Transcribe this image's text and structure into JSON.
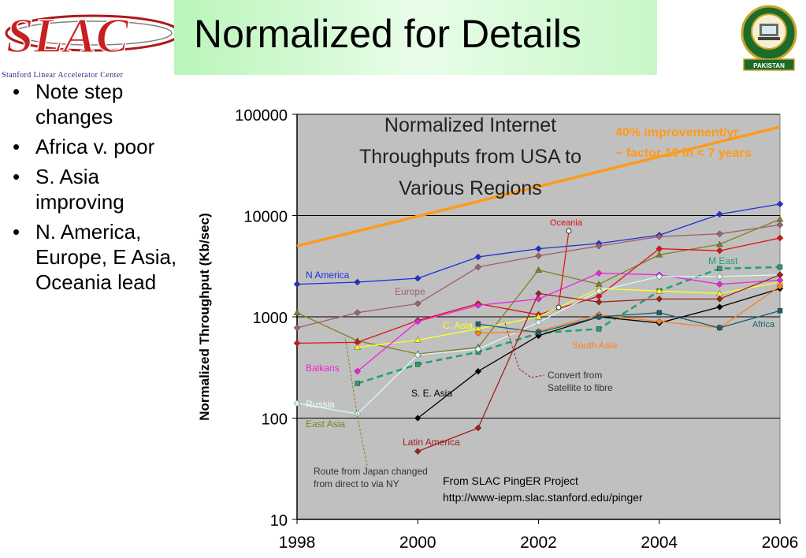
{
  "slide": {
    "title": "Normalized for Details",
    "logo_left": {
      "wordmark": "SLAC",
      "caption": "Stanford Linear Accelerator Center"
    },
    "logo_right": {
      "text": "PAKISTAN"
    },
    "bullets": [
      "Note step changes",
      "Africa v. poor",
      "S. Asia improving",
      "N. America, Europe, E Asia, Oceania lead"
    ]
  },
  "chart_data": {
    "type": "line",
    "title": "Normalized Internet Throughputs from USA to Various Regions",
    "ylabel": "Normalized Throughput (Kb/sec)",
    "xlabel": "",
    "y_scale": "log",
    "ylim": [
      10,
      100000
    ],
    "xlim": [
      1998,
      2006
    ],
    "yticks": [
      "10",
      "100",
      "1000",
      "10000",
      "100000"
    ],
    "xticks": [
      "1998",
      "2000",
      "2002",
      "2004",
      "2006"
    ],
    "plot_background": "#c0c0c0",
    "grid": "horizontal at decades",
    "trend": {
      "label_lines": [
        "40% improvement/yr",
        "~ factor 10 in < 7 years"
      ],
      "points": [
        [
          1998,
          5000
        ],
        [
          2006,
          75000
        ]
      ],
      "color": "#ff9a1a"
    },
    "series": [
      {
        "name": "N America",
        "color": "#1f2fd8",
        "marker": "diamond",
        "dash": false,
        "x": [
          1998,
          1999,
          2000,
          2001,
          2002,
          2003,
          2004,
          2005,
          2006
        ],
        "y": [
          2100,
          2200,
          2400,
          3900,
          4700,
          5300,
          6400,
          10300,
          13000
        ]
      },
      {
        "name": "Europe",
        "color": "#a06070",
        "marker": "diamond",
        "dash": false,
        "x": [
          1998,
          1999,
          2000,
          2001,
          2002,
          2003,
          2004,
          2005,
          2006
        ],
        "y": [
          780,
          1100,
          1350,
          3100,
          4000,
          5000,
          6200,
          6600,
          8100
        ]
      },
      {
        "name": "East Asia",
        "color": "#808020",
        "marker": "triangle",
        "dash": false,
        "x": [
          1998,
          1999,
          2000,
          2001,
          2002,
          2003,
          2004,
          2005,
          2006
        ],
        "y": [
          1100,
          580,
          430,
          500,
          2900,
          2100,
          4100,
          5200,
          9200
        ]
      },
      {
        "name": "M East",
        "color": "#20a070",
        "marker": "square",
        "dash": true,
        "x": [
          1999,
          2000,
          2001,
          2002,
          2003,
          2004,
          2005,
          2006
        ],
        "y": [
          220,
          340,
          450,
          690,
          760,
          1800,
          3000,
          3100
        ]
      },
      {
        "name": "Oceania",
        "color": "#e01010",
        "marker": "diamond",
        "dash": false,
        "x": [
          1998,
          1999,
          2000,
          2001,
          2002,
          2003,
          2004,
          2005,
          2006
        ],
        "y": [
          550,
          560,
          920,
          1350,
          1050,
          1600,
          4700,
          4500,
          6000
        ]
      },
      {
        "name": "C. Asia",
        "color": "#ffff20",
        "marker": "triangle",
        "dash": false,
        "x": [
          1999,
          2000,
          2001,
          2002,
          2003,
          2004,
          2005,
          2006
        ],
        "y": [
          500,
          590,
          760,
          1000,
          1900,
          1800,
          1700,
          2200
        ]
      },
      {
        "name": "Balkans",
        "color": "#f020e0",
        "marker": "diamond",
        "dash": false,
        "x": [
          1999,
          2000,
          2001,
          2002,
          2003,
          2004,
          2005,
          2006
        ],
        "y": [
          290,
          900,
          1300,
          1500,
          2700,
          2600,
          2100,
          2300
        ]
      },
      {
        "name": "Russia",
        "color": "#d8f8f8",
        "marker": "diamond",
        "dash": false,
        "x": [
          1998,
          1999,
          2000,
          2001,
          2002,
          2003,
          2004,
          2005,
          2006
        ],
        "y": [
          140,
          110,
          420,
          480,
          880,
          1800,
          2500,
          2500,
          2600
        ]
      },
      {
        "name": "S. E. Asia",
        "color": "#000000",
        "marker": "diamond",
        "dash": false,
        "x": [
          2000,
          2001,
          2002,
          2003,
          2004,
          2005,
          2006
        ],
        "y": [
          100,
          290,
          650,
          1000,
          870,
          1250,
          1900
        ]
      },
      {
        "name": "South Asia",
        "color": "#ff7f20",
        "marker": "diamond",
        "dash": false,
        "x": [
          2001,
          2002,
          2003,
          2004,
          2005,
          2006
        ],
        "y": [
          690,
          720,
          1050,
          900,
          780,
          2000
        ]
      },
      {
        "name": "Africa",
        "color": "#1a6070",
        "marker": "square",
        "dash": false,
        "x": [
          2001,
          2002,
          2003,
          2004,
          2005,
          2006
        ],
        "y": [
          850,
          700,
          1000,
          1100,
          780,
          1150
        ]
      },
      {
        "name": "Latin America",
        "color": "#a02020",
        "marker": "diamond",
        "dash": false,
        "x": [
          2000,
          2001,
          2002,
          2003,
          2004,
          2005,
          2006
        ],
        "y": [
          47,
          80,
          1700,
          1400,
          1500,
          1500,
          2600
        ]
      }
    ],
    "annotations": [
      {
        "text_lines": [
          "Convert from",
          "Satellite to fibre"
        ]
      },
      {
        "text_lines": [
          "Route from Japan changed",
          "from direct to via NY"
        ]
      },
      {
        "text_lines": [
          "From SLAC PingER Project",
          "http://www-iepm.slac.stanford.edu/pinger"
        ]
      }
    ]
  }
}
